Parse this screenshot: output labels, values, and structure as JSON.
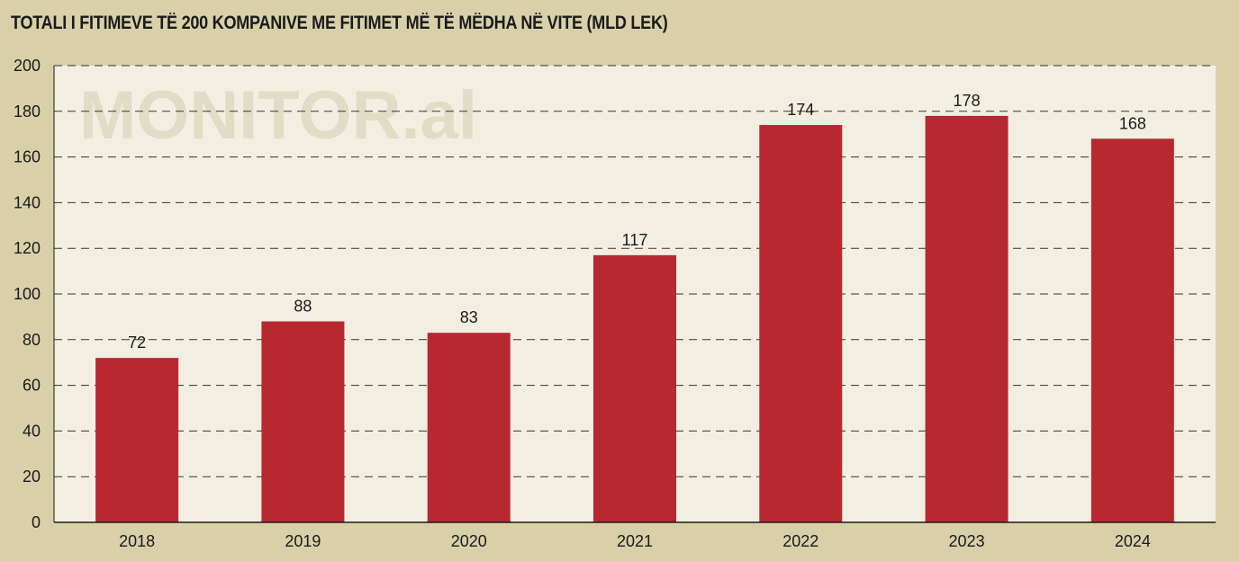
{
  "chart_data": {
    "type": "bar",
    "title": "TOTALI I FITIMEVE TË 200 KOMPANIVE ME FITIMET MË TË MËDHA NË VITE (MLD LEK)",
    "watermark": "MONITOR.al",
    "categories": [
      "2018",
      "2019",
      "2020",
      "2021",
      "2022",
      "2023",
      "2024"
    ],
    "values": [
      72,
      88,
      83,
      117,
      174,
      178,
      168
    ],
    "data_labels": [
      "72",
      "88",
      "83",
      "117",
      "174",
      "178",
      "168"
    ],
    "ylim": [
      0,
      200
    ],
    "yticks": [
      "0",
      "20",
      "40",
      "60",
      "80",
      "100",
      "120",
      "140",
      "160",
      "180",
      "200"
    ],
    "xlabel": "",
    "ylabel": "",
    "grid": true,
    "legend": "none",
    "colors": {
      "bar": "#b72830",
      "plot_background": "#f2efe2",
      "page_background": "#d9d0a9",
      "gridline": "#333333",
      "watermark": "#e2dcc6"
    }
  }
}
